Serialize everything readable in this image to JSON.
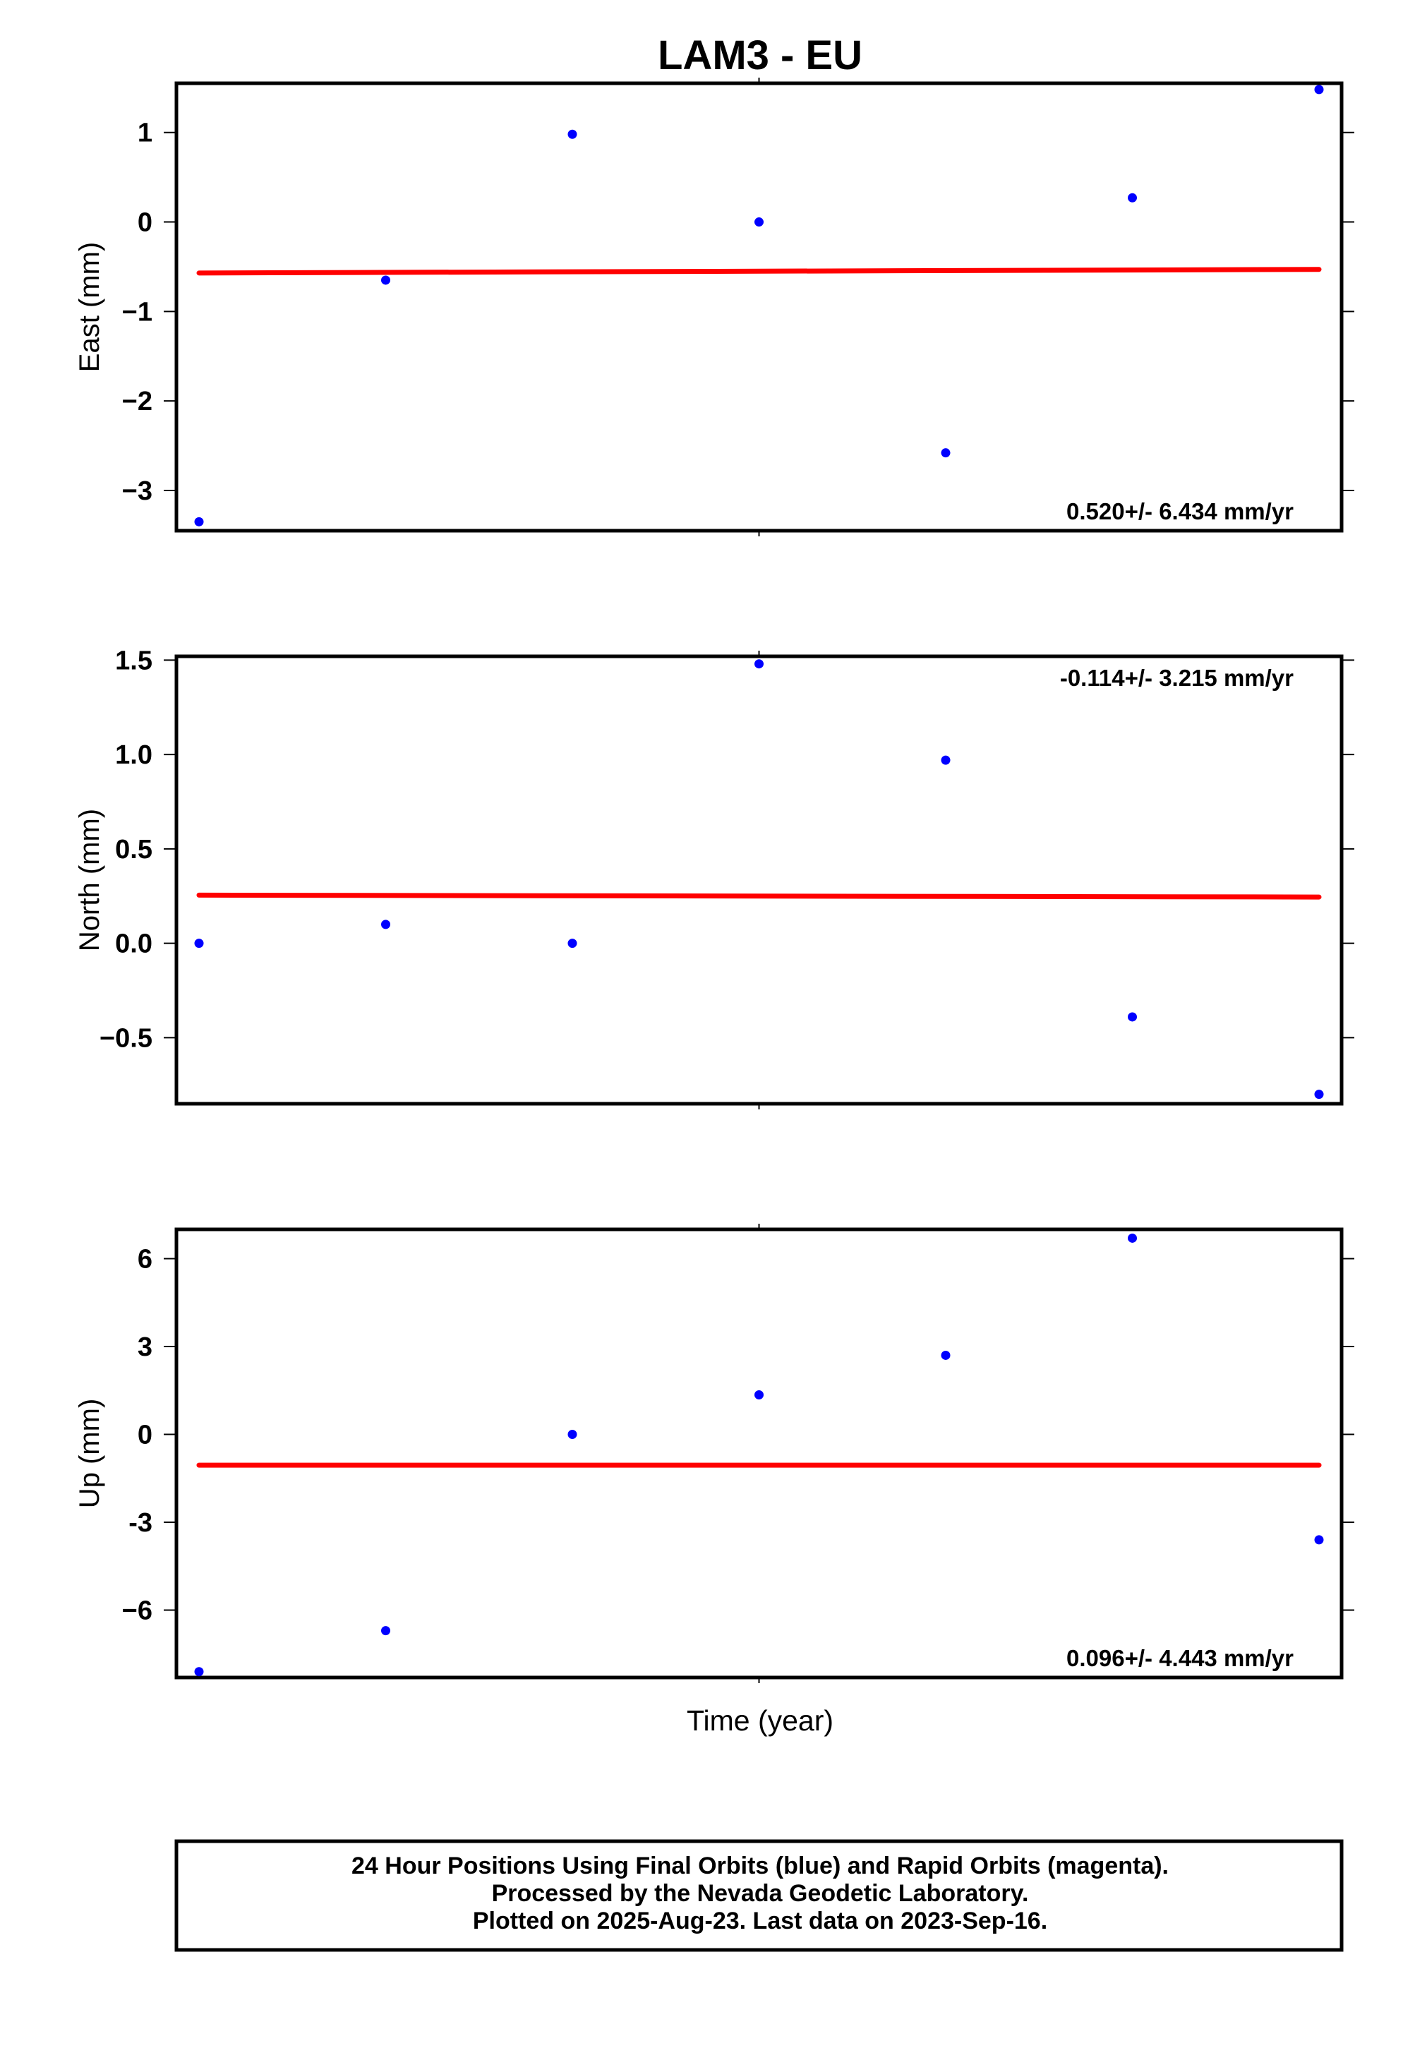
{
  "chart_data": {
    "type": "scatter",
    "title": "LAM3 - EU",
    "xlabel": "Time (year)",
    "x_index": [
      0,
      1,
      2,
      3,
      4,
      5,
      6
    ],
    "panels": [
      {
        "id": "east",
        "ylabel": "East (mm)",
        "ylim": [
          -3.45,
          1.55
        ],
        "ticks": [
          1,
          0,
          -1,
          -2,
          -3
        ],
        "tick_labels": [
          "1",
          "0",
          "−1",
          "−2",
          "−3"
        ],
        "points": [
          -3.35,
          -0.65,
          0.98,
          0.0,
          -2.58,
          0.27,
          1.48
        ],
        "trend": [
          -0.57,
          -0.53
        ],
        "rate_label": "0.520+/- 6.434 mm/yr",
        "rate_position": "bottom-right"
      },
      {
        "id": "north",
        "ylabel": "North (mm)",
        "ylim": [
          -0.85,
          1.52
        ],
        "ticks": [
          1.5,
          1.0,
          0.5,
          0.0,
          -0.5
        ],
        "tick_labels": [
          "1.5",
          "1.0",
          "0.5",
          "0.0",
          "−0.5"
        ],
        "points": [
          0.0,
          0.1,
          0.0,
          1.48,
          0.97,
          -0.39,
          -0.8
        ],
        "trend": [
          0.255,
          0.245
        ],
        "rate_label": "-0.114+/- 3.215 mm/yr",
        "rate_position": "top-right"
      },
      {
        "id": "up",
        "ylabel": "Up (mm)",
        "ylim": [
          -8.3,
          7.0
        ],
        "ticks": [
          6,
          3,
          0,
          -3,
          -6
        ],
        "tick_labels": [
          "6",
          "3",
          "0",
          "-3",
          "−6"
        ],
        "points": [
          -8.1,
          -6.7,
          0.0,
          1.35,
          2.7,
          6.7,
          -3.6
        ],
        "trend": [
          -1.05,
          -1.05
        ],
        "rate_label": "0.096+/- 4.443 mm/yr",
        "rate_position": "bottom-right"
      }
    ],
    "point_color": "#0000ff",
    "trend_color": "#ff0000"
  },
  "footer": {
    "line1": "24 Hour Positions Using Final Orbits (blue) and Rapid Orbits (magenta).",
    "line2": "Processed by the Nevada Geodetic Laboratory.",
    "line3": "Plotted on 2025-Aug-23. Last data on 2023-Sep-16."
  }
}
